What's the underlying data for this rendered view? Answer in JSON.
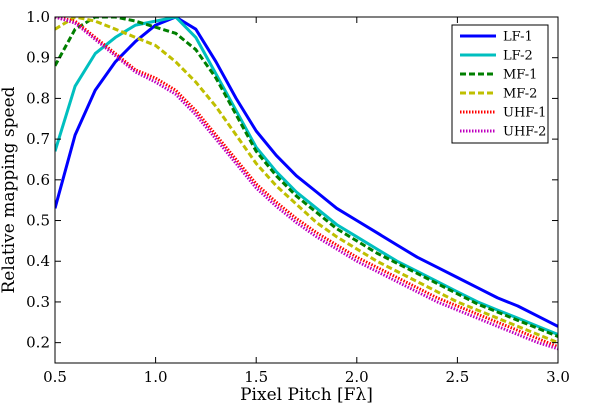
{
  "chart_data": {
    "type": "line",
    "xlabel": "Pixel Pitch [Fλ]",
    "ylabel": "Relative mapping speed",
    "xlim": [
      0.5,
      3.0
    ],
    "ylim": [
      0.15,
      1.0
    ],
    "xticks": [
      "0.5",
      "1.0",
      "1.5",
      "2.0",
      "2.5",
      "3.0"
    ],
    "xtick_values": [
      0.5,
      1.0,
      1.5,
      2.0,
      2.5,
      3.0
    ],
    "yticks": [
      "0.2",
      "0.3",
      "0.4",
      "0.5",
      "0.6",
      "0.7",
      "0.8",
      "0.9",
      "1.0"
    ],
    "ytick_values": [
      0.2,
      0.3,
      0.4,
      0.5,
      0.6,
      0.7,
      0.8,
      0.9,
      1.0
    ],
    "grid": false,
    "legend_position": "top-right",
    "series": [
      {
        "name": "LF-1",
        "color": "#0000ff",
        "style": "solid",
        "x": [
          0.5,
          0.6,
          0.7,
          0.8,
          0.9,
          1.0,
          1.1,
          1.2,
          1.3,
          1.4,
          1.5,
          1.6,
          1.7,
          1.8,
          1.9,
          2.0,
          2.1,
          2.2,
          2.3,
          2.4,
          2.5,
          2.6,
          2.7,
          2.8,
          2.9,
          3.0
        ],
        "y": [
          0.53,
          0.71,
          0.82,
          0.89,
          0.94,
          0.98,
          1.0,
          0.97,
          0.89,
          0.8,
          0.72,
          0.66,
          0.61,
          0.57,
          0.53,
          0.5,
          0.47,
          0.44,
          0.41,
          0.385,
          0.36,
          0.335,
          0.31,
          0.29,
          0.265,
          0.24
        ]
      },
      {
        "name": "LF-2",
        "color": "#00bfbf",
        "style": "solid",
        "x": [
          0.5,
          0.6,
          0.7,
          0.8,
          0.9,
          1.0,
          1.1,
          1.2,
          1.3,
          1.4,
          1.5,
          1.6,
          1.7,
          1.8,
          1.9,
          2.0,
          2.1,
          2.2,
          2.3,
          2.4,
          2.5,
          2.6,
          2.7,
          2.8,
          2.9,
          3.0
        ],
        "y": [
          0.67,
          0.83,
          0.91,
          0.95,
          0.98,
          0.99,
          1.0,
          0.95,
          0.86,
          0.77,
          0.68,
          0.62,
          0.57,
          0.53,
          0.49,
          0.46,
          0.43,
          0.4,
          0.375,
          0.35,
          0.325,
          0.3,
          0.28,
          0.26,
          0.24,
          0.22
        ]
      },
      {
        "name": "MF-1",
        "color": "#007f00",
        "style": "dashed",
        "x": [
          0.5,
          0.6,
          0.7,
          0.8,
          0.9,
          1.0,
          1.1,
          1.2,
          1.3,
          1.4,
          1.5,
          1.6,
          1.7,
          1.8,
          1.9,
          2.0,
          2.1,
          2.2,
          2.3,
          2.4,
          2.5,
          2.6,
          2.7,
          2.8,
          2.9,
          3.0
        ],
        "y": [
          0.88,
          0.97,
          1.0,
          1.0,
          0.99,
          0.975,
          0.96,
          0.92,
          0.85,
          0.76,
          0.67,
          0.61,
          0.56,
          0.52,
          0.48,
          0.45,
          0.42,
          0.395,
          0.37,
          0.345,
          0.32,
          0.295,
          0.275,
          0.255,
          0.235,
          0.215
        ]
      },
      {
        "name": "MF-2",
        "color": "#bfbf00",
        "style": "dashed",
        "x": [
          0.5,
          0.6,
          0.7,
          0.8,
          0.9,
          1.0,
          1.1,
          1.2,
          1.3,
          1.4,
          1.5,
          1.6,
          1.7,
          1.8,
          1.9,
          2.0,
          2.1,
          2.2,
          2.3,
          2.4,
          2.5,
          2.6,
          2.7,
          2.8,
          2.9,
          3.0
        ],
        "y": [
          0.97,
          1.0,
          0.99,
          0.97,
          0.95,
          0.93,
          0.89,
          0.84,
          0.78,
          0.71,
          0.64,
          0.585,
          0.54,
          0.495,
          0.46,
          0.43,
          0.4,
          0.375,
          0.35,
          0.325,
          0.3,
          0.28,
          0.26,
          0.24,
          0.22,
          0.2
        ]
      },
      {
        "name": "UHF-1",
        "color": "#ff0000",
        "style": "dotted",
        "x": [
          0.5,
          0.6,
          0.7,
          0.8,
          0.9,
          1.0,
          1.1,
          1.2,
          1.3,
          1.4,
          1.5,
          1.6,
          1.7,
          1.8,
          1.9,
          2.0,
          2.1,
          2.2,
          2.3,
          2.4,
          2.5,
          2.6,
          2.7,
          2.8,
          2.9,
          3.0
        ],
        "y": [
          1.0,
          0.99,
          0.95,
          0.91,
          0.87,
          0.85,
          0.82,
          0.77,
          0.71,
          0.65,
          0.59,
          0.545,
          0.505,
          0.47,
          0.44,
          0.41,
          0.385,
          0.36,
          0.335,
          0.31,
          0.29,
          0.27,
          0.25,
          0.23,
          0.21,
          0.19
        ]
      },
      {
        "name": "UHF-2",
        "color": "#bf00bf",
        "style": "dotted",
        "x": [
          0.5,
          0.6,
          0.7,
          0.8,
          0.9,
          1.0,
          1.1,
          1.2,
          1.3,
          1.4,
          1.5,
          1.6,
          1.7,
          1.8,
          1.9,
          2.0,
          2.1,
          2.2,
          2.3,
          2.4,
          2.5,
          2.6,
          2.7,
          2.8,
          2.9,
          3.0
        ],
        "y": [
          1.0,
          0.985,
          0.945,
          0.905,
          0.865,
          0.84,
          0.81,
          0.76,
          0.7,
          0.64,
          0.58,
          0.535,
          0.495,
          0.46,
          0.43,
          0.4,
          0.375,
          0.35,
          0.325,
          0.3,
          0.28,
          0.26,
          0.24,
          0.22,
          0.2,
          0.185
        ]
      }
    ]
  }
}
